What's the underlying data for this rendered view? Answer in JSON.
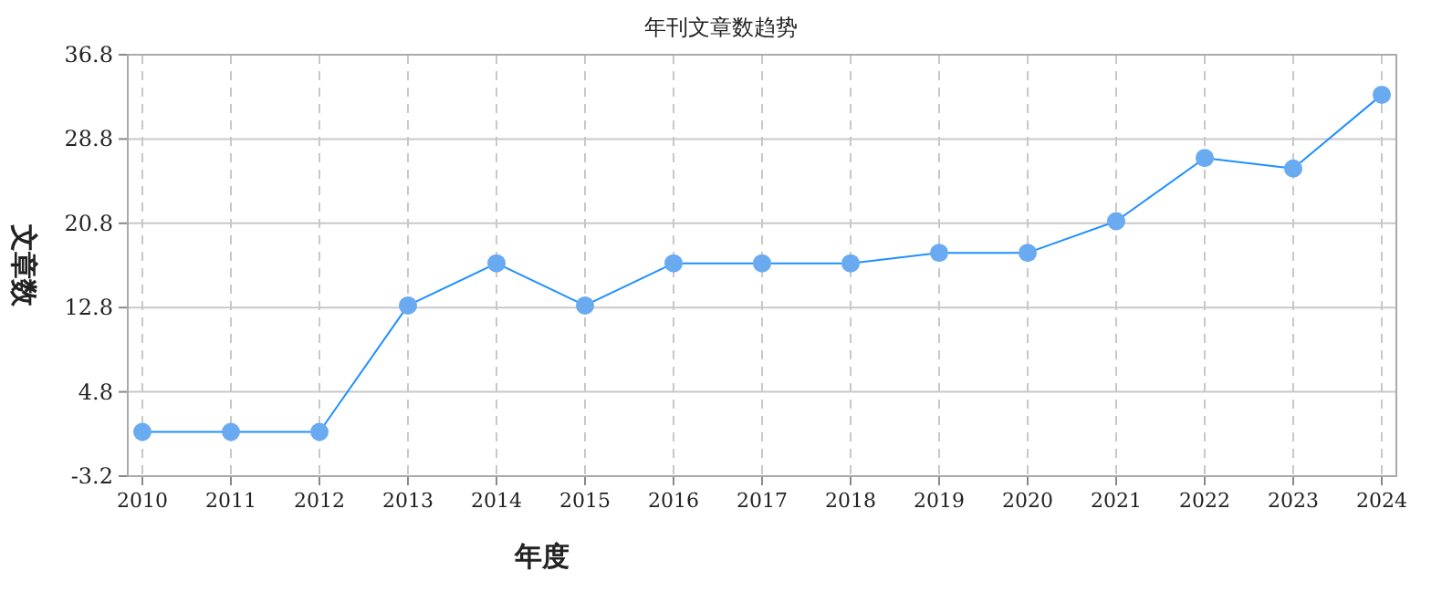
{
  "chart_data": {
    "type": "line",
    "title": "年刊文章数趋势",
    "xlabel": "年度",
    "ylabel": "文章数",
    "categories": [
      "2010",
      "2011",
      "2012",
      "2013",
      "2014",
      "2015",
      "2016",
      "2017",
      "2018",
      "2019",
      "2020",
      "2021",
      "2022",
      "2023",
      "2024"
    ],
    "series": [
      {
        "color": "#1e90ff",
        "values": [
          1,
          1,
          1,
          13,
          17,
          13,
          17,
          17,
          17,
          18,
          18,
          21,
          27,
          26,
          33
        ]
      }
    ],
    "ylim": [
      -3.2,
      36.8
    ],
    "yticks": [
      -3.2,
      4.8,
      12.8,
      20.8,
      28.8,
      36.8
    ],
    "grid": true,
    "marker": "circle",
    "line_style": "solid"
  }
}
